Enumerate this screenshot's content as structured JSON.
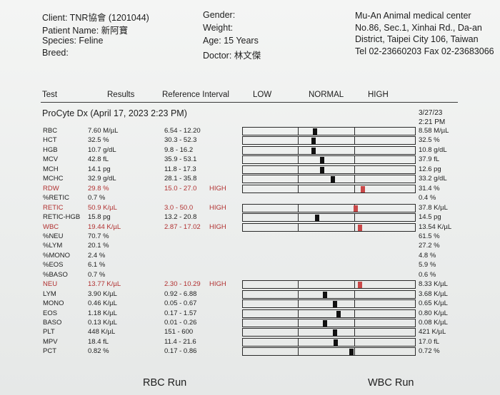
{
  "header": {
    "client": "Client: TNR協會 (1201044)",
    "patient": "Patient Name: 新阿寶",
    "species": "Species: Feline",
    "breed": "Breed:",
    "gender": "Gender:",
    "weight": "Weight:",
    "age": "Age: 15 Years",
    "doctor": "Doctor: 林文傑"
  },
  "clinic": {
    "name": "Mu-An Animal medical center",
    "address": "No.86, Sec.1, Xinhai Rd., Da-an District, Taipei City 106, Taiwan",
    "tel": "Tel 02-23660203  Fax 02-23683066"
  },
  "columns": {
    "test": "Test",
    "results": "Results",
    "reference": "Reference Interval",
    "low": "LOW",
    "normal": "NORMAL",
    "high": "HIGH"
  },
  "run": {
    "title": "ProCyte Dx (April 17, 2023 2:23 PM)",
    "prev_date": "3/27/23",
    "prev_time": "2:21 PM"
  },
  "rows": [
    {
      "test": "RBC",
      "result": "7.60 M/µL",
      "ref": "6.54 - 12.20",
      "flag": "",
      "prev": "8.58 M/µL",
      "level": 0.3,
      "high": false
    },
    {
      "test": "HCT",
      "result": "32.5 %",
      "ref": "30.3 - 52.3",
      "flag": "",
      "prev": "32.5 %",
      "level": 0.28,
      "high": false
    },
    {
      "test": "HGB",
      "result": "10.7 g/dL",
      "ref": "9.8 - 16.2",
      "flag": "",
      "prev": "10.8 g/dL",
      "level": 0.28,
      "high": false
    },
    {
      "test": "MCV",
      "result": "42.8 fL",
      "ref": "35.9 - 53.1",
      "flag": "",
      "prev": "37.9 fL",
      "level": 0.43,
      "high": false
    },
    {
      "test": "MCH",
      "result": "14.1 pg",
      "ref": "11.8 - 17.3",
      "flag": "",
      "prev": "12.6 pg",
      "level": 0.43,
      "high": false
    },
    {
      "test": "MCHC",
      "result": "32.9 g/dL",
      "ref": "28.1 - 35.8",
      "flag": "",
      "prev": "33.2 g/dL",
      "level": 0.62,
      "high": false
    },
    {
      "test": "RDW",
      "result": "29.8 %",
      "ref": "15.0 - 27.0",
      "flag": "HIGH",
      "prev": "31.4 %",
      "level": 1.15,
      "high": true
    },
    {
      "test": "%RETIC",
      "result": "0.7 %",
      "ref": "",
      "flag": "",
      "prev": "0.4 %",
      "level": null,
      "high": false
    },
    {
      "test": "RETIC",
      "result": "50.9 K/µL",
      "ref": "3.0 - 50.0",
      "flag": "HIGH",
      "prev": "37.8 K/µL",
      "level": 1.02,
      "high": true
    },
    {
      "test": "RETIC-HGB",
      "result": "15.8 pg",
      "ref": "13.2 - 20.8",
      "flag": "",
      "prev": "14.5 pg",
      "level": 0.34,
      "high": false
    },
    {
      "test": "WBC",
      "result": "19.44 K/µL",
      "ref": "2.87 - 17.02",
      "flag": "HIGH",
      "prev": "13.54 K/µL",
      "level": 1.1,
      "high": true
    },
    {
      "test": "%NEU",
      "result": "70.7 %",
      "ref": "",
      "flag": "",
      "prev": "61.5 %",
      "level": null,
      "high": false
    },
    {
      "test": "%LYM",
      "result": "20.1 %",
      "ref": "",
      "flag": "",
      "prev": "27.2 %",
      "level": null,
      "high": false
    },
    {
      "test": "%MONO",
      "result": "2.4 %",
      "ref": "",
      "flag": "",
      "prev": "4.8 %",
      "level": null,
      "high": false
    },
    {
      "test": "%EOS",
      "result": "6.1 %",
      "ref": "",
      "flag": "",
      "prev": "5.9 %",
      "level": null,
      "high": false
    },
    {
      "test": "%BASO",
      "result": "0.7 %",
      "ref": "",
      "flag": "",
      "prev": "0.6 %",
      "level": null,
      "high": false
    },
    {
      "test": "NEU",
      "result": "13.77 K/µL",
      "ref": "2.30 - 10.29",
      "flag": "HIGH",
      "prev": "8.33 K/µL",
      "level": 1.1,
      "high": true
    },
    {
      "test": "LYM",
      "result": "3.90 K/µL",
      "ref": "0.92 - 6.88",
      "flag": "",
      "prev": "3.68 K/µL",
      "level": 0.48,
      "high": false
    },
    {
      "test": "MONO",
      "result": "0.46 K/µL",
      "ref": "0.05 - 0.67",
      "flag": "",
      "prev": "0.65 K/µL",
      "level": 0.66,
      "high": false
    },
    {
      "test": "EOS",
      "result": "1.18 K/µL",
      "ref": "0.17 - 1.57",
      "flag": "",
      "prev": "0.80 K/µL",
      "level": 0.72,
      "high": false
    },
    {
      "test": "BASO",
      "result": "0.13 K/µL",
      "ref": "0.01 - 0.26",
      "flag": "",
      "prev": "0.08 K/µL",
      "level": 0.48,
      "high": false
    },
    {
      "test": "PLT",
      "result": "448 K/µL",
      "ref": "151 - 600",
      "flag": "",
      "prev": "421 K/µL",
      "level": 0.66,
      "high": false
    },
    {
      "test": "MPV",
      "result": "18.4 fL",
      "ref": "11.4 - 21.6",
      "flag": "",
      "prev": "17.0 fL",
      "level": 0.67,
      "high": false
    },
    {
      "test": "PCT",
      "result": "0.82 %",
      "ref": "0.17 - 0.86",
      "flag": "",
      "prev": "0.72 %",
      "level": 0.95,
      "high": false
    }
  ],
  "footer": {
    "rbc_run": "RBC Run",
    "wbc_run": "WBC Run"
  },
  "colors": {
    "high_text": "#b13030",
    "high_marker": "#c94848",
    "normal_marker": "#111111"
  }
}
